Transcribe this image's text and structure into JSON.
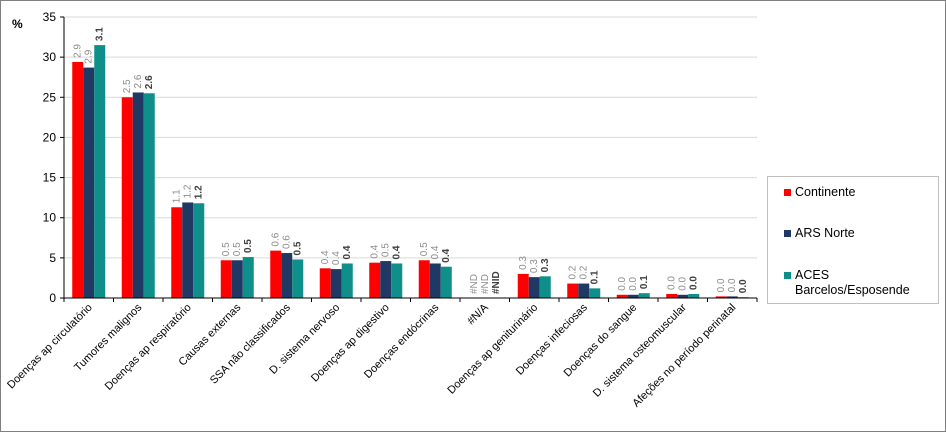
{
  "chart_data": {
    "type": "bar",
    "ylabel": "%",
    "ylim": [
      0,
      35
    ],
    "yticks": [
      "0",
      "5",
      "10",
      "15",
      "20",
      "25",
      "30",
      "35"
    ],
    "categories": [
      "Doenças ap circulatório",
      "Tumores malignos",
      "Doenças ap respiratório",
      "Causas externas",
      "SSA não classificados",
      "D. sistema nervoso",
      "Doenças ap digestivo",
      "Doenças endócrinas",
      "#N/A",
      "Doenças ap geniturinário",
      "Doenças infeciosas",
      "Doenças do sangue",
      "D. sistema osteomuscular",
      "Afeções no período perinatal"
    ],
    "series": [
      {
        "name": "Continente",
        "color": "#ff0000",
        "values": [
          29.4,
          25.0,
          11.3,
          4.7,
          5.9,
          3.7,
          4.4,
          4.7,
          0,
          3.0,
          1.8,
          0.4,
          0.5,
          0.2
        ],
        "labels": [
          "2.9",
          "2.5",
          "1.1",
          "0.5",
          "0.6",
          "0.4",
          "0.4",
          "0.5",
          "#ND",
          "0.3",
          "0.2",
          "0.0",
          "0.0",
          "0.0"
        ]
      },
      {
        "name": "ARS Norte",
        "color": "#1f3864",
        "values": [
          28.7,
          25.6,
          11.9,
          4.7,
          5.6,
          3.6,
          4.6,
          4.3,
          0,
          2.6,
          1.8,
          0.4,
          0.4,
          0.2
        ],
        "labels": [
          "2.9",
          "2.6",
          "1.2",
          "0.5",
          "0.6",
          "0.4",
          "0.5",
          "0.4",
          "#ND",
          "0.3",
          "0.2",
          "0.0",
          "0.0",
          "0.0"
        ]
      },
      {
        "name": "ACES Barcelos/Esposende",
        "color": "#0f8f89",
        "values": [
          31.5,
          25.5,
          11.8,
          5.1,
          4.8,
          4.3,
          4.3,
          3.9,
          0,
          2.7,
          1.2,
          0.6,
          0.5,
          0.1
        ],
        "labels": [
          "3.1",
          "2.6",
          "1.2",
          "0.5",
          "0.5",
          "0.4",
          "0.4",
          "0.4",
          "#NID",
          "0.3",
          "0.1",
          "0.1",
          "0.0",
          "0.0"
        ]
      }
    ],
    "grid": true,
    "legend": "right"
  },
  "legend": {
    "continente": "Continente",
    "ars_norte": "ARS Norte",
    "aces_line1": "ACES",
    "aces_line2": "Barcelos/Esposende"
  }
}
